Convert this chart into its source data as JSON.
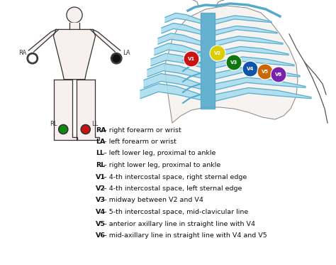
{
  "background_color": "#ffffff",
  "text_lines": [
    {
      "bold": "RA",
      "rest": " – right forearm or wrist"
    },
    {
      "bold": "LA",
      "rest": " – left forearm or wrist"
    },
    {
      "bold": "LL",
      "rest": " – left lower leg, proximal to ankle"
    },
    {
      "bold": "RL",
      "rest": " – right lower leg, proximal to ankle"
    },
    {
      "bold": "V1",
      "rest": " – 4-th intercostal space, right sternal edge"
    },
    {
      "bold": "V2",
      "rest": " – 4-th intercostal space, left sternal edge"
    },
    {
      "bold": "V3",
      "rest": " – midway between V2 and V4"
    },
    {
      "bold": "V4",
      "rest": " – 5-th intercostal space, mid-clavicular line"
    },
    {
      "bold": "V5",
      "rest": " – anterior axillary line in straight line with V4"
    },
    {
      "bold": "V6",
      "rest": " – mid-axillary line in straight line with V4 and V5"
    }
  ],
  "electrode_colors": {
    "V1": "#cc1111",
    "V2": "#ddcc00",
    "V3": "#117711",
    "V4": "#1155aa",
    "V5": "#cc6600",
    "V6": "#7722aa"
  },
  "limb_colors": {
    "RA": "#ffffff",
    "LA": "#111111",
    "RL": "#118811",
    "LL": "#cc1111"
  },
  "body_fill": "#f8f0ee",
  "body_outline": "#333333",
  "rib_fill": "#aaddee",
  "rib_outline": "#55aacc",
  "sternum_fill": "#55aacc",
  "skin_fill": "#f0e8e4"
}
